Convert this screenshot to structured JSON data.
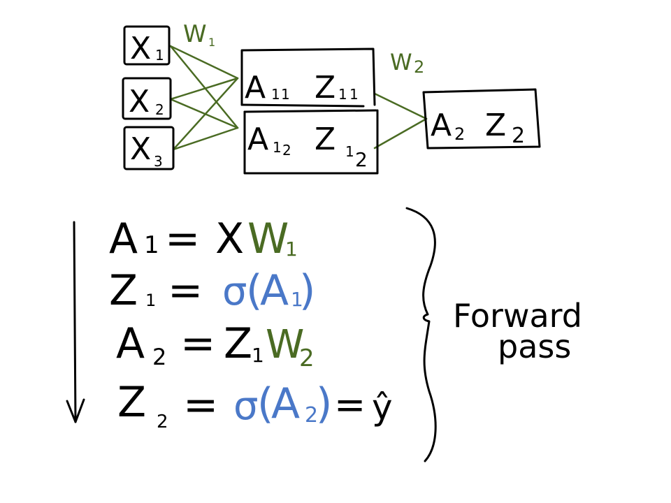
{
  "colors": {
    "ink": "#000000",
    "weight": "#4a6b23",
    "activation": "#4a78c8",
    "background": "#ffffff"
  },
  "network": {
    "inputs": [
      {
        "base": "X",
        "sub": "1"
      },
      {
        "base": "X",
        "sub": "2"
      },
      {
        "base": "X",
        "sub": "3"
      }
    ],
    "weight_labels": [
      {
        "base": "W",
        "sub": "1"
      },
      {
        "base": "W",
        "sub": "2"
      }
    ],
    "hidden": [
      {
        "a_base": "A",
        "a_sub": "1",
        "a_subsub": "1",
        "z_base": "Z",
        "z_sub": "1",
        "z_subsub": "1"
      },
      {
        "a_base": "A",
        "a_sub": "1",
        "a_subsub": "2",
        "z_base": "Z",
        "z_sub": "1",
        "z_subsub": "2"
      }
    ],
    "output": {
      "a_base": "A",
      "a_sub": "2",
      "z_base": "Z",
      "z_sub": "2"
    }
  },
  "equations": [
    {
      "lhs": "A",
      "lhs_sub": "1",
      "eq": "=",
      "rhs_black": "X",
      "rhs_green": "W",
      "rhs_green_sub": "1"
    },
    {
      "lhs": "Z",
      "lhs_sub": "1",
      "eq": "=",
      "sigma": "σ",
      "paren_open": "(",
      "arg": "A",
      "arg_sub": "1",
      "paren_close": ")"
    },
    {
      "lhs": "A",
      "lhs_sub": "2",
      "eq": "=",
      "rhs_black": "Z",
      "rhs_black_sub": "1",
      "rhs_green": "W",
      "rhs_green_sub": "2"
    },
    {
      "lhs": "Z",
      "lhs_sub": "2",
      "eq": "=",
      "sigma": "σ",
      "paren_open": "(",
      "arg": "A",
      "arg_sub": "2",
      "paren_close": ")",
      "eq2": "=",
      "result": "ŷ"
    }
  ],
  "annotation": {
    "line1": "Forward",
    "line2": "pass"
  }
}
